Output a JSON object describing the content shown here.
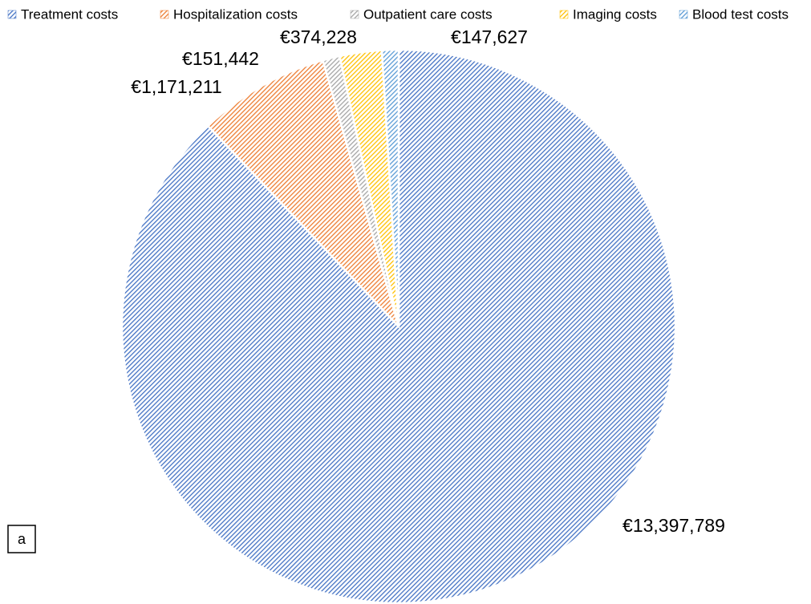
{
  "chart_data": {
    "type": "pie",
    "categories": [
      "Treatment costs",
      "Hospitalization costs",
      "Outpatient care costs",
      "Imaging costs",
      "Blood test costs"
    ],
    "values": [
      13397789,
      1171211,
      151442,
      374228,
      147627
    ],
    "value_labels": [
      "€13,397,789",
      "€1,171,211",
      "€151,442",
      "€374,228",
      "€147,627"
    ],
    "colors": [
      "#4472c4",
      "#ed7d31",
      "#a5a5a5",
      "#ffc000",
      "#5b9bd5"
    ],
    "legend": "top",
    "panel_label": "a"
  }
}
